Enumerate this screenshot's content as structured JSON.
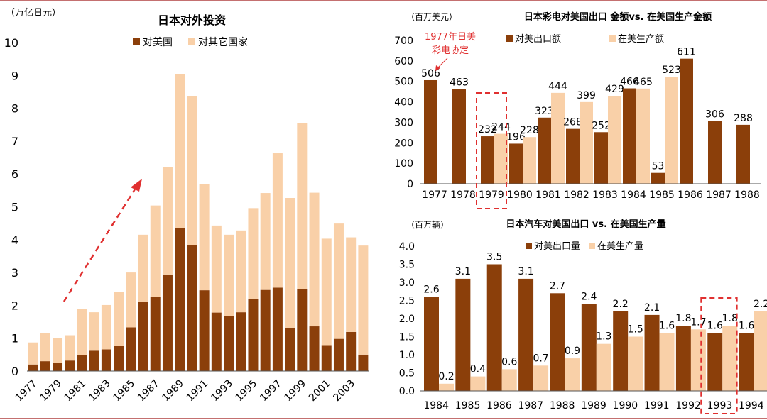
{
  "colors": {
    "us": "#8B3F0A",
    "other": "#F9D0A8",
    "accent": "#E03030",
    "axis": "#555555",
    "frame": "#B04040"
  },
  "chart_data": [
    {
      "type": "bar",
      "stacked": true,
      "title": "日本对外投资",
      "unit_label": "（万亿日元）",
      "ylim": [
        0,
        10
      ],
      "yticks": [
        0,
        1,
        2,
        3,
        4,
        5,
        6,
        7,
        8,
        9,
        10
      ],
      "categories": [
        1977,
        1978,
        1979,
        1980,
        1981,
        1982,
        1983,
        1984,
        1985,
        1986,
        1987,
        1988,
        1989,
        1990,
        1991,
        1992,
        1993,
        1994,
        1995,
        1996,
        1997,
        1998,
        1999,
        2000,
        2001,
        2002,
        2003,
        2004
      ],
      "xtick_labels": [
        "1977",
        "1979",
        "1981",
        "1983",
        "1985",
        "1987",
        "1989",
        "1991",
        "1993",
        "1995",
        "1997",
        "1999",
        "2001",
        "2003"
      ],
      "legend": [
        "对美国",
        "对其它国家"
      ],
      "series": [
        {
          "name": "对美国",
          "values": [
            0.2,
            0.3,
            0.25,
            0.32,
            0.48,
            0.62,
            0.66,
            0.76,
            1.33,
            2.1,
            2.26,
            2.94,
            4.36,
            3.84,
            2.46,
            1.78,
            1.68,
            1.79,
            2.19,
            2.47,
            2.54,
            1.32,
            2.49,
            1.36,
            0.79,
            0.98,
            1.19,
            0.5
          ]
        },
        {
          "name": "对其它国家",
          "values": [
            0.67,
            0.85,
            0.75,
            0.77,
            1.42,
            1.17,
            1.35,
            1.64,
            1.67,
            2.05,
            2.78,
            3.26,
            4.67,
            4.52,
            3.23,
            2.65,
            2.47,
            2.49,
            2.77,
            2.95,
            4.09,
            3.95,
            5.05,
            4.07,
            3.24,
            3.51,
            2.88,
            3.32
          ]
        }
      ]
    },
    {
      "type": "bar",
      "title": "日本彩电对美国出口 金额vs. 在美国生产金额",
      "unit_label": "（百万美元）",
      "ylim": [
        0,
        700
      ],
      "yticks": [
        0,
        100,
        200,
        300,
        400,
        500,
        600,
        700
      ],
      "categories": [
        "1977",
        "1978",
        "1979",
        "1980",
        "1981",
        "1982",
        "1983",
        "1984",
        "1985",
        "1986",
        "1987",
        "1988"
      ],
      "legend": [
        "对美出口额",
        "在美生产额"
      ],
      "annotation": "1977年日美彩电协定",
      "annotation_lines": [
        "1977年日美",
        "彩电协定"
      ],
      "highlight": "1979",
      "series": [
        {
          "name": "对美出口额",
          "values": [
            506,
            463,
            232,
            196,
            323,
            268,
            252,
            466,
            53,
            611,
            306,
            288
          ],
          "labels": [
            "506",
            "463",
            "232",
            "196",
            "323",
            "268",
            "252",
            "466",
            "53",
            "611",
            "306",
            "288"
          ]
        },
        {
          "name": "在美生产额",
          "values": [
            null,
            null,
            244,
            228,
            444,
            399,
            429,
            465,
            523,
            null,
            null,
            null
          ],
          "labels": [
            "",
            "",
            "244",
            "228",
            "444",
            "399",
            "429",
            "465",
            "523",
            "",
            "",
            ""
          ]
        }
      ]
    },
    {
      "type": "bar",
      "title": "日本汽车对美国出口 vs. 在美国生产量",
      "unit_label": "（百万辆）",
      "ylim": [
        0,
        4.0
      ],
      "yticks": [
        "0.0",
        "0.5",
        "1.0",
        "1.5",
        "2.0",
        "2.5",
        "3.0",
        "3.5",
        "4.0"
      ],
      "categories": [
        "1984",
        "1985",
        "1986",
        "1987",
        "1988",
        "1989",
        "1990",
        "1991",
        "1992",
        "1993",
        "1994"
      ],
      "legend": [
        "对美出口量",
        "在美生产量"
      ],
      "highlight": "1993",
      "series": [
        {
          "name": "对美出口量",
          "values": [
            2.6,
            3.1,
            3.5,
            3.1,
            2.7,
            2.4,
            2.2,
            2.1,
            1.8,
            1.6,
            1.6
          ],
          "labels": [
            "2.6",
            "3.1",
            "3.5",
            "3.1",
            "2.7",
            "2.4",
            "2.2",
            "2.1",
            "1.8",
            "1.6",
            "1.6"
          ]
        },
        {
          "name": "在美生产量",
          "values": [
            0.2,
            0.4,
            0.6,
            0.7,
            0.9,
            1.3,
            1.5,
            1.6,
            1.7,
            1.8,
            2.2
          ],
          "labels": [
            "0.2",
            "0.4",
            "0.6",
            "0.7",
            "0.9",
            "1.3",
            "1.5",
            "1.6",
            "1.7",
            "1.8",
            "2.2"
          ]
        }
      ]
    }
  ]
}
